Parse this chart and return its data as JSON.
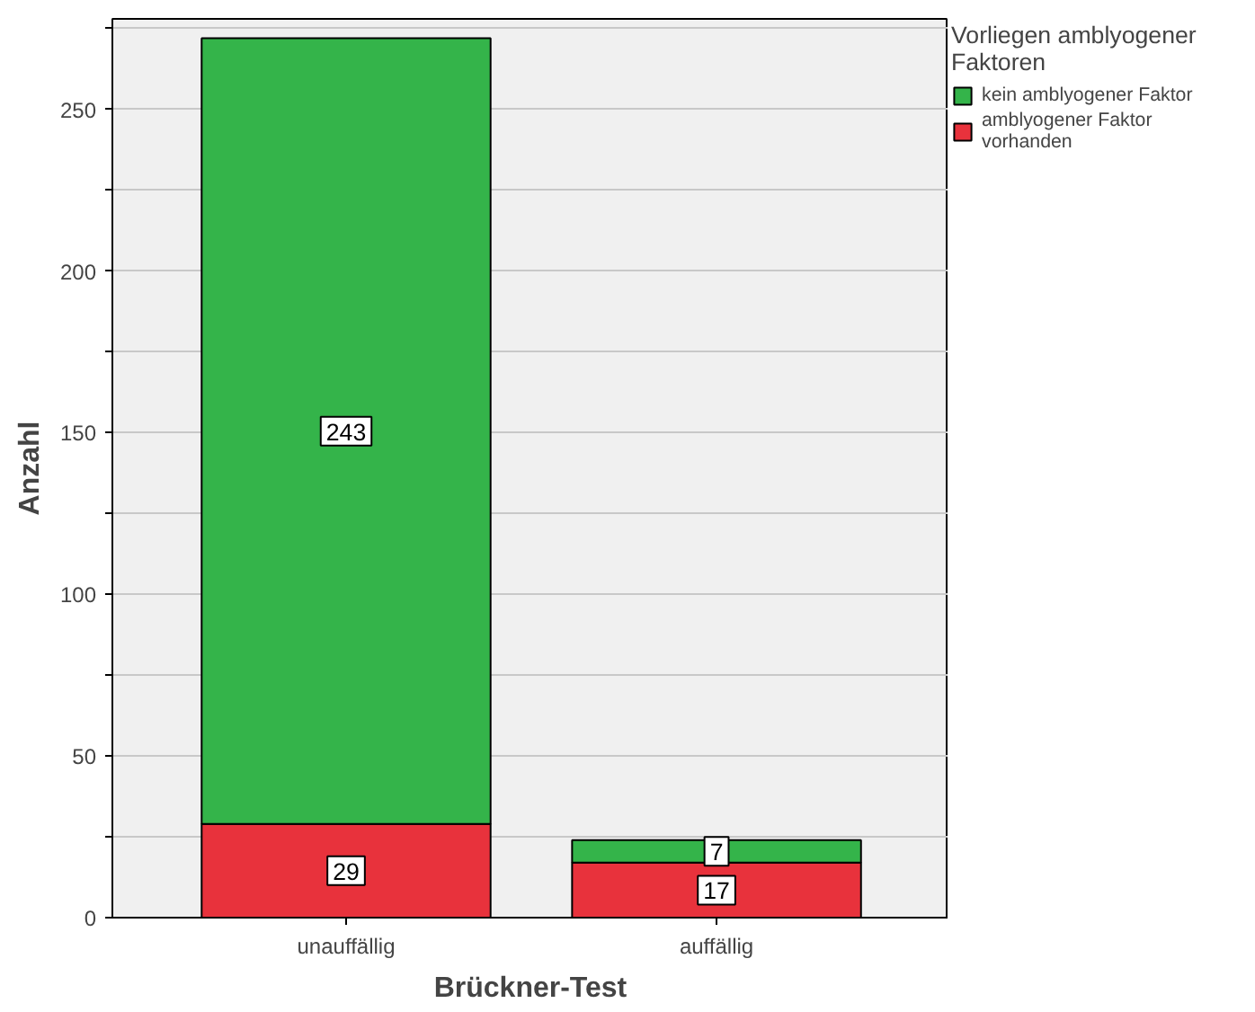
{
  "chart_data": {
    "type": "bar",
    "stacked": true,
    "xlabel": "Brückner-Test",
    "ylabel": "Anzahl",
    "legend_title": "Vorliegen amblyogener\nFaktoren",
    "categories": [
      "unauffällig",
      "auffällig"
    ],
    "series": [
      {
        "name": "amblyogener Faktor\nvorhanden",
        "color": "#e8323c",
        "values": [
          29,
          17
        ]
      },
      {
        "name": "kein amblyogener Faktor",
        "color": "#34b44a",
        "values": [
          243,
          7
        ]
      }
    ],
    "ylim": [
      0,
      278
    ],
    "yticks": [
      0,
      {
        "value": 25,
        "label": null
      },
      50,
      {
        "value": 75,
        "label": null
      },
      100,
      {
        "value": 125,
        "label": null
      },
      150,
      {
        "value": 175,
        "label": null
      },
      200,
      {
        "value": 225,
        "label": null
      },
      250,
      {
        "value": 275,
        "label": null
      }
    ],
    "grid": "y",
    "legend": "right",
    "data_labels": true
  }
}
